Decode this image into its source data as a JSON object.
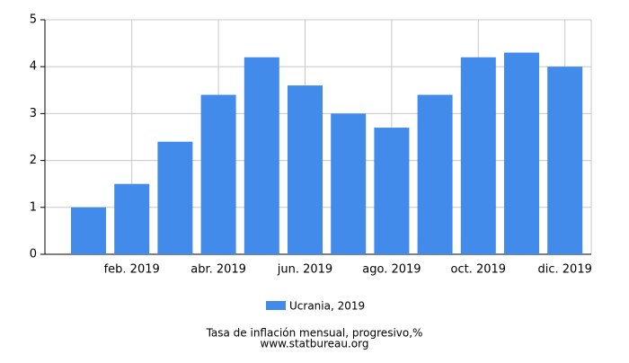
{
  "chart_data": {
    "type": "bar",
    "title": "Tasa de inflación mensual, progresivo,%",
    "source": "www.statbureau.org",
    "categories": [
      null,
      "feb. 2019",
      null,
      "abr. 2019",
      null,
      "jun. 2019",
      null,
      "ago. 2019",
      null,
      "oct. 2019",
      null,
      "dic. 2019"
    ],
    "series": [
      {
        "name": "Ucrania, 2019",
        "color": "#428bea",
        "values": [
          1.0,
          1.5,
          2.4,
          3.4,
          4.2,
          3.6,
          3.0,
          2.7,
          3.4,
          4.2,
          4.3,
          4.0
        ]
      }
    ],
    "ylim": [
      0,
      5
    ],
    "yticks": [
      0,
      1,
      2,
      3,
      4,
      5
    ],
    "grid": true
  }
}
